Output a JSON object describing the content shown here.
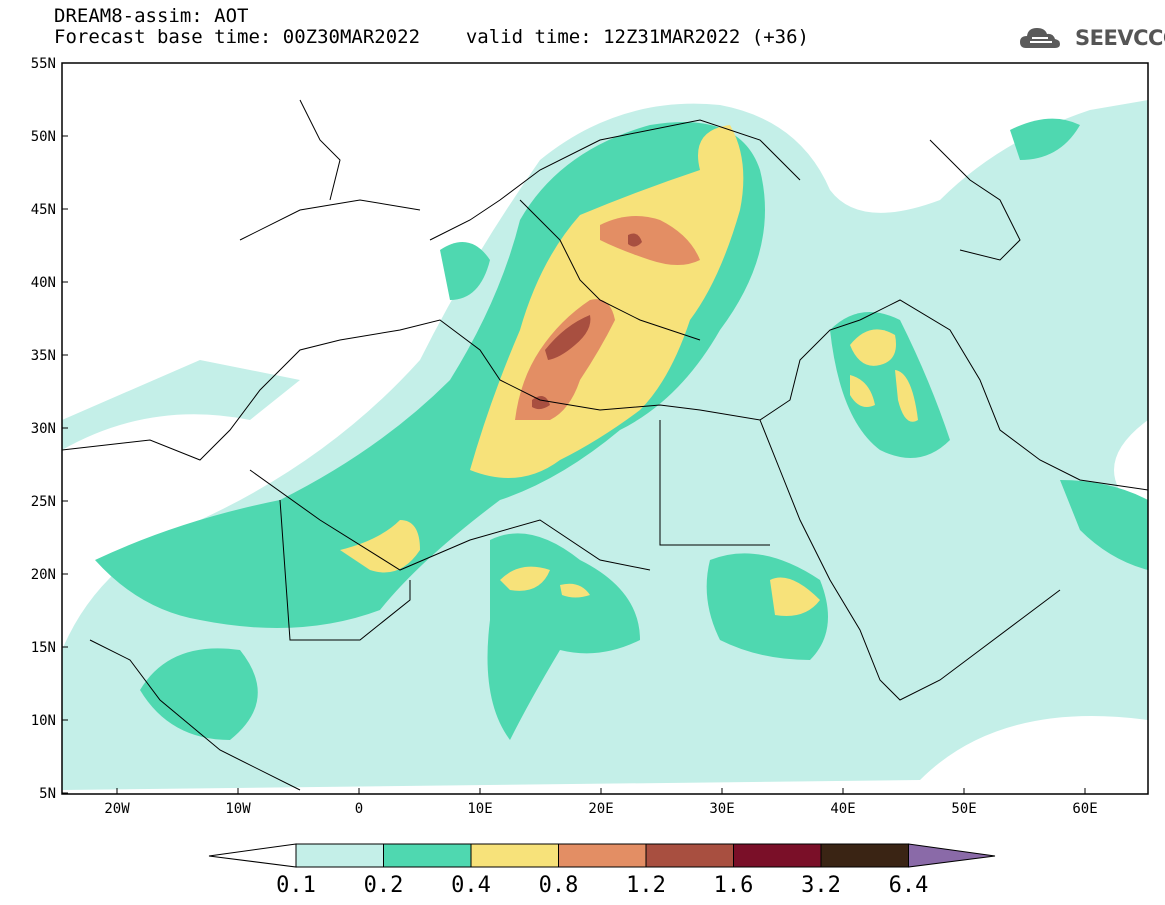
{
  "header": {
    "title_line1": "DREAM8-assim: AOT",
    "base_time": "Forecast base time: 00Z30MAR2022",
    "valid_time": "valid time: 12Z31MAR2022 (+36)"
  },
  "logo": {
    "text": "SEEVCCC",
    "icon": "cloud-icon"
  },
  "map": {
    "lat_labels": [
      "55N",
      "50N",
      "45N",
      "40N",
      "35N",
      "30N",
      "25N",
      "20N",
      "15N",
      "10N",
      "5N"
    ],
    "lon_labels": [
      "20W",
      "10W",
      "0",
      "10E",
      "20E",
      "30E",
      "40E",
      "50E",
      "60E"
    ]
  },
  "colorbar": {
    "labels": [
      "0.1",
      "0.2",
      "0.4",
      "0.8",
      "1.2",
      "1.6",
      "3.2",
      "6.4"
    ],
    "colors": [
      "#ffffff",
      "#c4efe8",
      "#4fd8b0",
      "#f7e27a",
      "#e38e64",
      "#a84f40",
      "#7a0f28",
      "#3a2414",
      "#8a6aa8"
    ]
  }
}
